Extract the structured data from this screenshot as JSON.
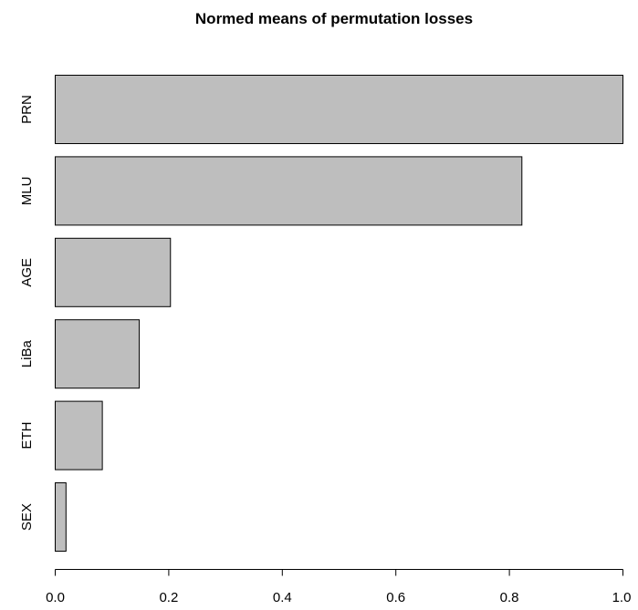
{
  "chart_data": {
    "type": "bar",
    "orientation": "horizontal",
    "title": "Normed means of permutation losses",
    "xlabel": "",
    "ylabel": "",
    "categories": [
      "PRN",
      "MLU",
      "AGE",
      "LiBa",
      "ETH",
      "SEX"
    ],
    "values": [
      1.0,
      0.822,
      0.203,
      0.148,
      0.083,
      0.019
    ],
    "xlim": [
      0,
      1
    ],
    "xticks": [
      0.0,
      0.2,
      0.4,
      0.6,
      0.8,
      1.0
    ],
    "xtick_labels": [
      "0.0",
      "0.2",
      "0.4",
      "0.6",
      "0.8",
      "1.0"
    ],
    "grid": false,
    "legend": "none",
    "bar_color": "#bebebe",
    "bar_edge_color": "#000000"
  }
}
